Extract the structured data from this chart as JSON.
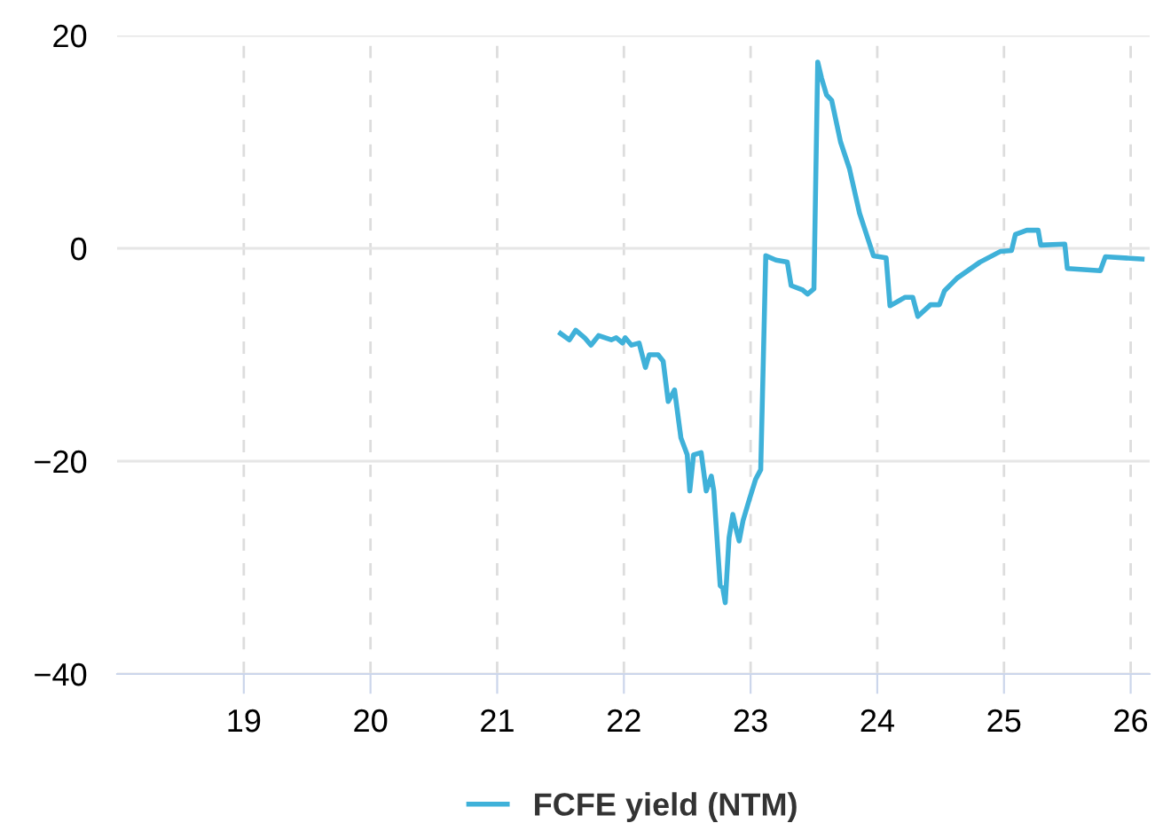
{
  "chart_data": {
    "type": "line",
    "x": [
      21.5,
      21.57,
      21.62,
      21.69,
      21.74,
      21.8,
      21.9,
      21.94,
      21.99,
      22.01,
      22.06,
      22.12,
      22.17,
      22.2,
      22.27,
      22.31,
      22.35,
      22.4,
      22.45,
      22.5,
      22.52,
      22.55,
      22.61,
      22.65,
      22.69,
      22.71,
      22.76,
      22.78,
      22.8,
      22.83,
      22.86,
      22.88,
      22.91,
      22.94,
      22.99,
      23.04,
      23.08,
      23.12,
      23.2,
      23.29,
      23.32,
      23.41,
      23.45,
      23.5,
      23.53,
      23.56,
      23.6,
      23.64,
      23.71,
      23.78,
      23.86,
      23.97,
      24.07,
      24.1,
      24.22,
      24.28,
      24.32,
      24.42,
      24.49,
      24.53,
      24.63,
      24.81,
      24.97,
      25.06,
      25.09,
      25.18,
      25.27,
      25.29,
      25.48,
      25.5,
      25.76,
      25.8,
      26.09
    ],
    "series": [
      {
        "name": "FCFE yield (NTM)",
        "color": "#3fb1d9",
        "values": [
          -8.0,
          -8.6,
          -7.7,
          -8.4,
          -9.1,
          -8.2,
          -8.6,
          -8.4,
          -8.9,
          -8.4,
          -9.1,
          -8.9,
          -11.2,
          -10,
          -10,
          -10.6,
          -14.4,
          -13.3,
          -17.8,
          -19.4,
          -22.8,
          -19.4,
          -19.2,
          -22.8,
          -21.4,
          -22.8,
          -31.7,
          -31.9,
          -33.3,
          -27.2,
          -25,
          -26.1,
          -27.5,
          -25.6,
          -23.6,
          -21.7,
          -20.8,
          -0.7,
          -1.1,
          -1.3,
          -3.5,
          -3.9,
          -4.3,
          -3.8,
          17.5,
          16,
          14.4,
          13.9,
          10,
          7.5,
          3.3,
          -0.7,
          -0.9,
          -5.4,
          -4.6,
          -4.6,
          -6.4,
          -5.3,
          -5.3,
          -4,
          -2.8,
          -1.3,
          -0.3,
          -0.2,
          1.3,
          1.7,
          1.7,
          0.3,
          0.4,
          -1.9,
          -2.1,
          -0.8,
          -1.0
        ]
      }
    ],
    "xlim": [
      18.0,
      26.15
    ],
    "xticks": [
      19,
      20,
      21,
      22,
      23,
      24,
      25,
      26
    ],
    "ylim": [
      -40,
      20
    ],
    "yticks": [
      {
        "value": -40,
        "label": "−40"
      },
      {
        "value": -20,
        "label": "−20"
      },
      0,
      20
    ],
    "grid": true,
    "legend": "bottom",
    "marker": "none",
    "line_style": "solid"
  }
}
